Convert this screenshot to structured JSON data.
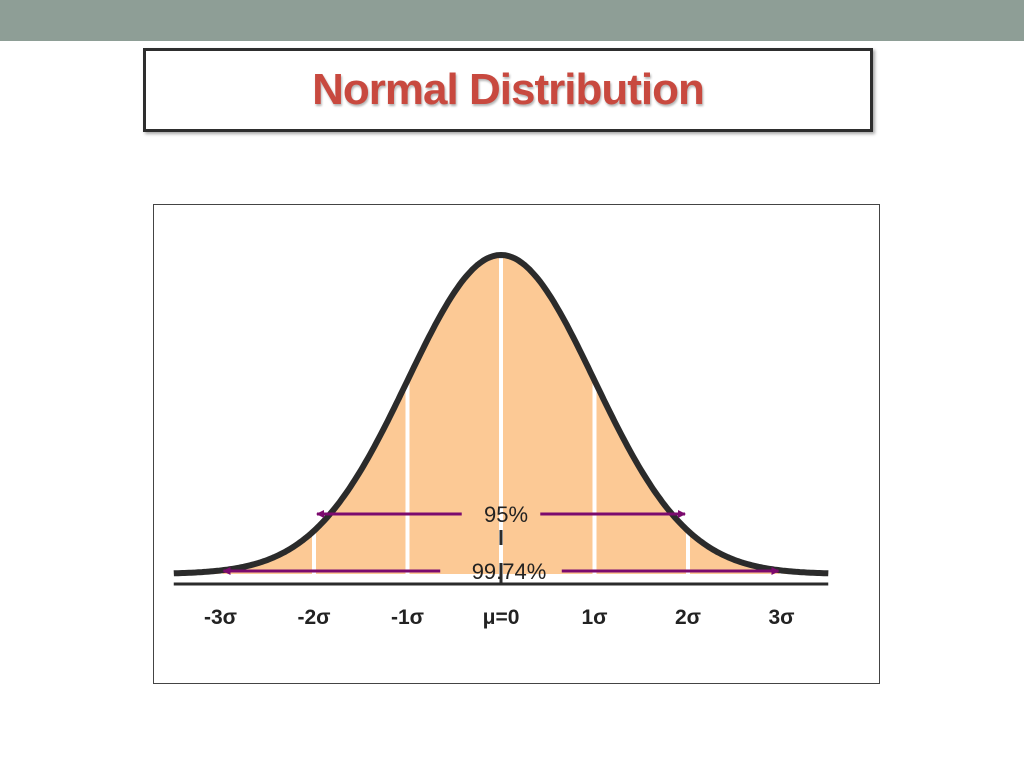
{
  "slide": {
    "title": "Normal Distribution"
  },
  "chart_data": {
    "type": "area",
    "title": "Normal Distribution",
    "distribution": "normal",
    "mean": 0,
    "sd": 1,
    "xlim": [
      -3.5,
      3.5
    ],
    "fill_color": "#fcc995",
    "curve_color": "#2b2b2b",
    "divider_color": "#ffffff",
    "arrow_color": "#7b0a6e",
    "sigma_lines": [
      -3,
      -2,
      -1,
      0,
      1,
      2,
      3
    ],
    "tick_labels": [
      {
        "x": -3,
        "label": "-3σ"
      },
      {
        "x": -2,
        "label": "-2σ"
      },
      {
        "x": -1,
        "label": "-1σ"
      },
      {
        "x": 0,
        "label": "μ=0"
      },
      {
        "x": 1,
        "label": "1σ"
      },
      {
        "x": 2,
        "label": "2σ"
      },
      {
        "x": 3,
        "label": "3σ"
      }
    ],
    "intervals": [
      {
        "label": "95%",
        "from": -2,
        "to": 2
      },
      {
        "label": "99.74%",
        "from": -3,
        "to": 3
      }
    ],
    "grid": false
  }
}
